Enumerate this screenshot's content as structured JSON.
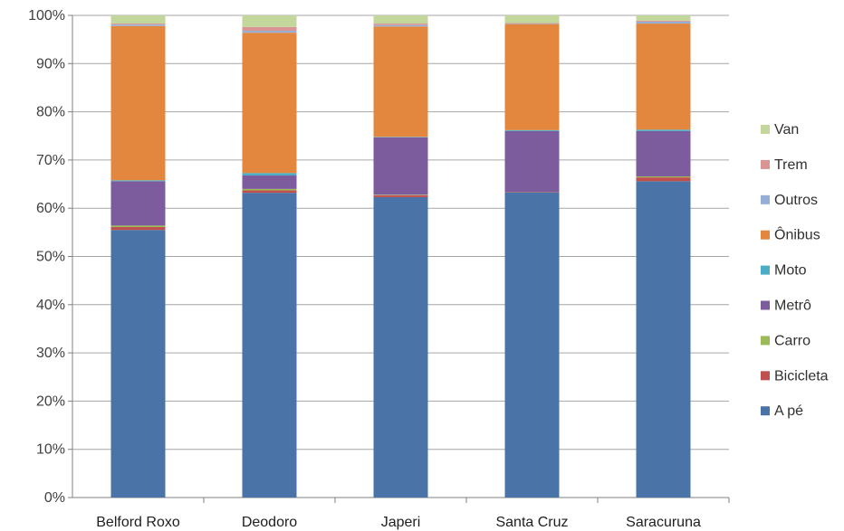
{
  "chart_data": {
    "type": "bar",
    "stacked": true,
    "percent": true,
    "title": "",
    "xlabel": "",
    "ylabel": "",
    "ylim": [
      0,
      100
    ],
    "y_ticks": [
      "0%",
      "10%",
      "20%",
      "30%",
      "40%",
      "50%",
      "60%",
      "70%",
      "80%",
      "90%",
      "100%"
    ],
    "grid": true,
    "legend_position": "right",
    "categories": [
      "Belford Roxo",
      "Deodoro",
      "Japeri",
      "Santa Cruz",
      "Saracuruna"
    ],
    "series": [
      {
        "name": "A pé",
        "color": "#4A74A8",
        "values": [
          55.5,
          63.2,
          62.3,
          63.3,
          65.6
        ]
      },
      {
        "name": "Bicicleta",
        "color": "#C0504D",
        "values": [
          0.6,
          0.5,
          0.4,
          0.1,
          0.8
        ]
      },
      {
        "name": "Carro",
        "color": "#9BBB59",
        "values": [
          0.3,
          0.3,
          0.1,
          0.0,
          0.2
        ]
      },
      {
        "name": "Metrô",
        "color": "#7C5C9C",
        "values": [
          9.2,
          2.8,
          11.9,
          12.6,
          9.4
        ]
      },
      {
        "name": "Moto",
        "color": "#4BACC6",
        "values": [
          0.2,
          0.5,
          0.1,
          0.2,
          0.3
        ]
      },
      {
        "name": "Ônibus",
        "color": "#E3873F",
        "values": [
          32.0,
          29.1,
          22.9,
          22.0,
          22.0
        ]
      },
      {
        "name": "Outros",
        "color": "#94AED6",
        "values": [
          0.3,
          0.4,
          0.3,
          0.1,
          0.4
        ]
      },
      {
        "name": "Trem",
        "color": "#D99594",
        "values": [
          0.2,
          0.8,
          0.3,
          0.1,
          0.2
        ]
      },
      {
        "name": "Van",
        "color": "#C3D69B",
        "values": [
          1.7,
          2.4,
          1.7,
          1.6,
          1.1
        ]
      }
    ]
  }
}
